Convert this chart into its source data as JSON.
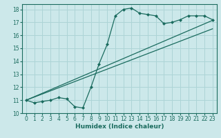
{
  "xlabel": "Humidex (Indice chaleur)",
  "xlim": [
    -0.5,
    23.5
  ],
  "ylim": [
    10,
    18.4
  ],
  "xticks": [
    0,
    1,
    2,
    3,
    4,
    5,
    6,
    7,
    8,
    9,
    10,
    11,
    12,
    13,
    14,
    15,
    16,
    17,
    18,
    19,
    20,
    21,
    22,
    23
  ],
  "yticks": [
    10,
    11,
    12,
    13,
    14,
    15,
    16,
    17,
    18
  ],
  "bg_color": "#cce8ea",
  "grid_color": "#add4d6",
  "line_color": "#1a6b5e",
  "curve_x": [
    0,
    1,
    2,
    3,
    4,
    5,
    6,
    7,
    8,
    9,
    10,
    11,
    12,
    13,
    14,
    15,
    16,
    17,
    18,
    19,
    20,
    21,
    22,
    23
  ],
  "curve_y": [
    11.0,
    10.8,
    10.9,
    11.0,
    11.2,
    11.1,
    10.5,
    10.4,
    12.0,
    13.8,
    15.3,
    17.5,
    18.0,
    18.1,
    17.7,
    17.6,
    17.5,
    16.9,
    17.0,
    17.2,
    17.5,
    17.5,
    17.5,
    17.2
  ],
  "line1_x": [
    0,
    23
  ],
  "line1_y": [
    11.0,
    17.15
  ],
  "line2_x": [
    0,
    23
  ],
  "line2_y": [
    11.0,
    16.5
  ],
  "xlabel_fontsize": 6.5,
  "tick_fontsize": 5.5,
  "marker": "D",
  "markersize": 2.0,
  "linewidth": 0.9
}
